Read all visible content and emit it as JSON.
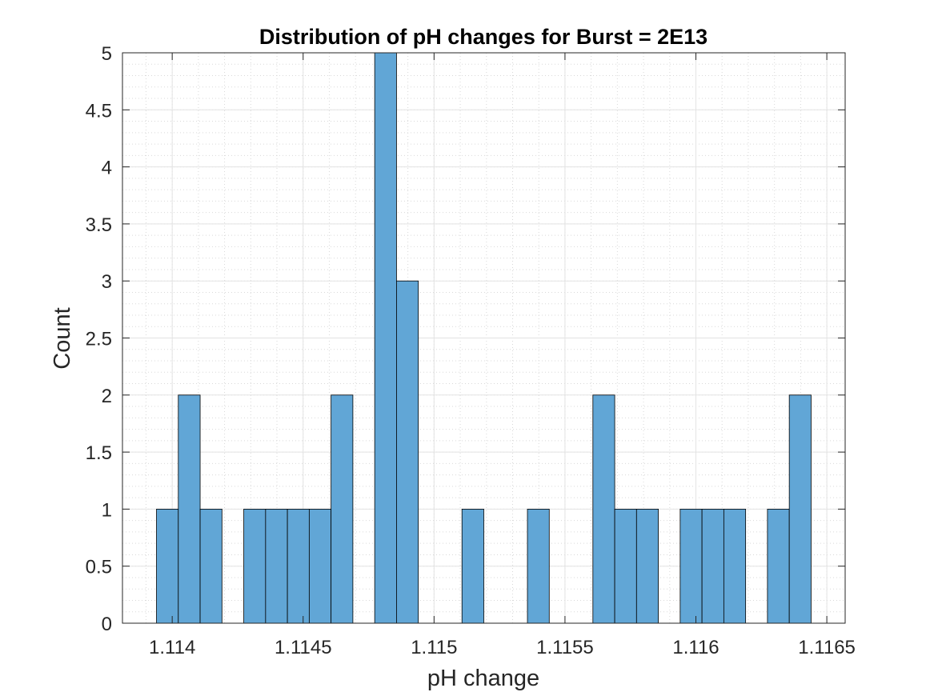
{
  "chart_data": {
    "type": "bar",
    "title": "Distribution of pH changes for Burst = 2E13",
    "xlabel": "pH change",
    "ylabel": "Count",
    "xlim": [
      1.11381,
      1.11657
    ],
    "ylim": [
      0,
      5
    ],
    "xticks": [
      1.114,
      1.1145,
      1.115,
      1.1155,
      1.116,
      1.1165
    ],
    "xtick_labels": [
      "1.114",
      "1.1145",
      "1.115",
      "1.1155",
      "1.116",
      "1.1165"
    ],
    "yticks": [
      0,
      0.5,
      1,
      1.5,
      2,
      2.5,
      3,
      3.5,
      4,
      4.5,
      5
    ],
    "ytick_labels": [
      "0",
      "0.5",
      "1",
      "1.5",
      "2",
      "2.5",
      "3",
      "3.5",
      "4",
      "4.5",
      "5"
    ],
    "bin_width": 8.333e-05,
    "bin_edges_start": 1.11394,
    "counts": [
      1,
      2,
      1,
      0,
      1,
      1,
      1,
      1,
      2,
      0,
      5,
      3,
      0,
      0,
      1,
      0,
      0,
      1,
      0,
      0,
      2,
      1,
      1,
      0,
      1,
      1,
      1,
      0,
      1,
      2
    ],
    "grid": true,
    "minor_grid": true,
    "bar_color": "#61a6d6",
    "edge_color": "#000000"
  }
}
